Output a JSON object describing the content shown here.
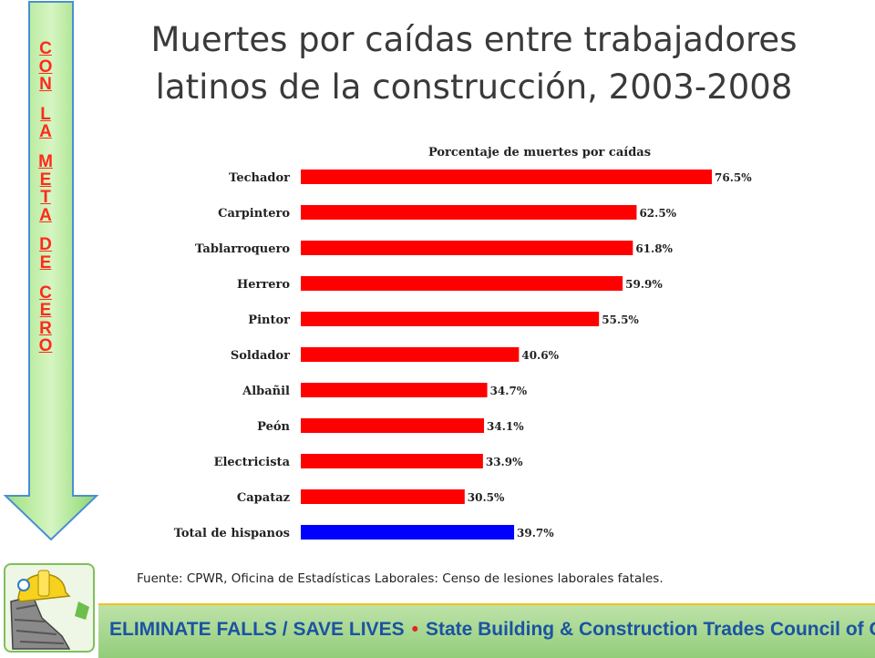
{
  "slide": {
    "title_line1": "Muertes por caídas entre trabajadores",
    "title_line2": "latinos de la construcción, 2003-2008",
    "side_words": [
      {
        "letters": [
          "C",
          "O",
          "N"
        ]
      },
      {
        "letters": [
          "L",
          "A"
        ]
      },
      {
        "letters": [
          "M",
          "E",
          "T",
          "A"
        ]
      },
      {
        "letters": [
          "D",
          "E"
        ]
      },
      {
        "letters": [
          "C",
          "E",
          "R",
          "O"
        ]
      }
    ],
    "source": "Fuente:  CPWR, Oficina de Estadísticas Laborales: Censo de lesiones laborales fatales.",
    "banner_left": "ELIMINATE FALLS / SAVE LIVES",
    "banner_dot": "•",
    "banner_right": "State Building & Construction Trades Council of CA",
    "arrow_color": "#4a8fd4",
    "logo_icon": "hard-hat-california-icon"
  },
  "chart_data": {
    "type": "bar",
    "orientation": "horizontal",
    "title": "Porcentaje de muertes por caídas",
    "categories": [
      "Techador",
      "Carpintero",
      "Tablarroquero",
      "Herrero",
      "Pintor",
      "Soldador",
      "Albañil",
      "Peón",
      "Electricista",
      "Capataz",
      "Total de hispanos"
    ],
    "values": [
      76.5,
      62.5,
      61.8,
      59.9,
      55.5,
      40.6,
      34.7,
      34.1,
      33.9,
      30.5,
      39.7
    ],
    "value_labels": [
      "76.5%",
      "62.5%",
      "61.8%",
      "59.9%",
      "55.5%",
      "40.6%",
      "34.7%",
      "34.1%",
      "33.9%",
      "30.5%",
      "39.7%"
    ],
    "colors": [
      "#ff0000",
      "#ff0000",
      "#ff0000",
      "#ff0000",
      "#ff0000",
      "#ff0000",
      "#ff0000",
      "#ff0000",
      "#ff0000",
      "#ff0000",
      "#0000ff"
    ],
    "xlim": [
      0,
      100
    ],
    "grid": false,
    "legend": "none"
  }
}
